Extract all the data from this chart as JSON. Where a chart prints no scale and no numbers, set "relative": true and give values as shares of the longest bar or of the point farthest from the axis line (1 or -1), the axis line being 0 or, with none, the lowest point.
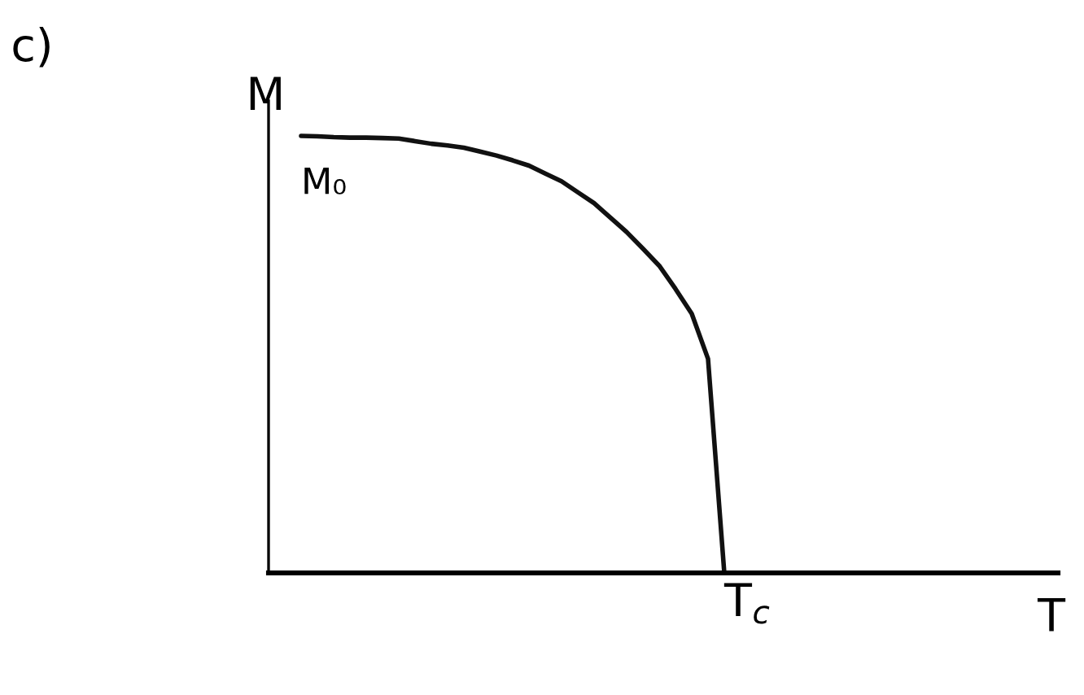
{
  "chart_data": {
    "type": "line",
    "title": "c)",
    "ylabel": "M",
    "xlabel": "T",
    "relative": true,
    "categories": [
      null,
      null,
      null,
      null,
      null,
      null,
      null,
      null,
      null,
      null,
      null,
      null,
      null,
      null,
      null,
      null,
      null,
      null,
      null,
      null,
      null,
      null,
      null,
      null,
      null,
      null,
      null,
      null,
      null,
      null,
      null,
      null,
      null,
      null,
      null,
      null,
      null,
      null,
      null,
      null,
      null,
      null,
      null,
      null,
      null,
      null,
      null
    ],
    "series": [
      {
        "color": "#111111",
        "values": [
          1.0,
          0.999,
          0.997,
          0.996,
          0.996,
          0.995,
          0.994,
          0.988,
          0.982,
          0.978,
          0.973,
          0.964,
          0.955,
          0.944,
          0.932,
          0.914,
          0.896,
          0.871,
          0.846,
          0.813,
          0.78,
          0.742,
          0.703,
          0.65,
          0.593,
          0.49,
          0,
          null,
          null,
          null,
          null,
          null,
          null,
          null,
          null,
          null,
          null,
          null,
          null,
          null,
          null,
          null,
          null,
          null,
          null,
          null,
          null
        ]
      }
    ],
    "annotations": [
      "M₀",
      "T$_{c}$"
    ]
  }
}
